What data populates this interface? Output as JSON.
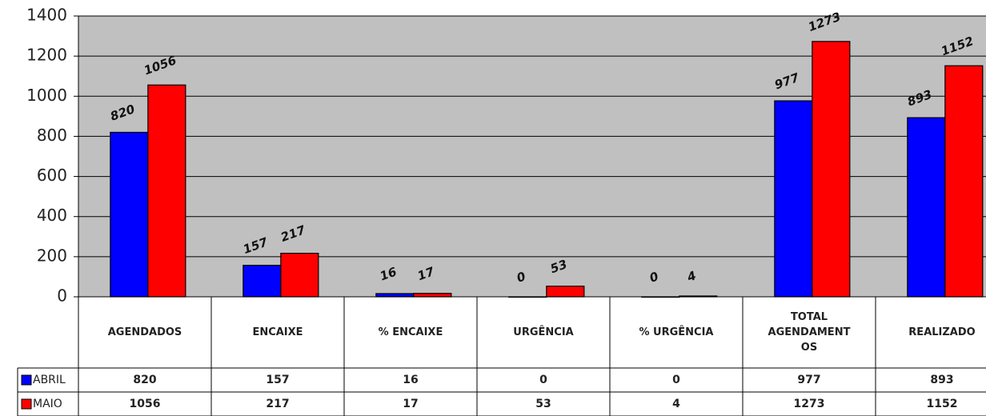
{
  "chart_data": {
    "type": "bar",
    "categories": [
      "AGENDADOS",
      "ENCAIXE",
      "% ENCAIXE",
      "URGÊNCIA",
      "% URGÊNCIA",
      "TOTAL AGENDAMENTOS",
      "REALIZADO"
    ],
    "series": [
      {
        "name": "ABRIL",
        "color": "#0000ff",
        "values": [
          820,
          157,
          16,
          0,
          0,
          977,
          893
        ]
      },
      {
        "name": "MAIO",
        "color": "#ff0000",
        "values": [
          1056,
          217,
          17,
          53,
          4,
          1273,
          1152
        ]
      }
    ],
    "ylim": [
      0,
      1400
    ],
    "yticks": [
      0,
      200,
      400,
      600,
      800,
      1000,
      1200,
      1400
    ],
    "grid": true,
    "plot_background": "#c0c0c0"
  }
}
